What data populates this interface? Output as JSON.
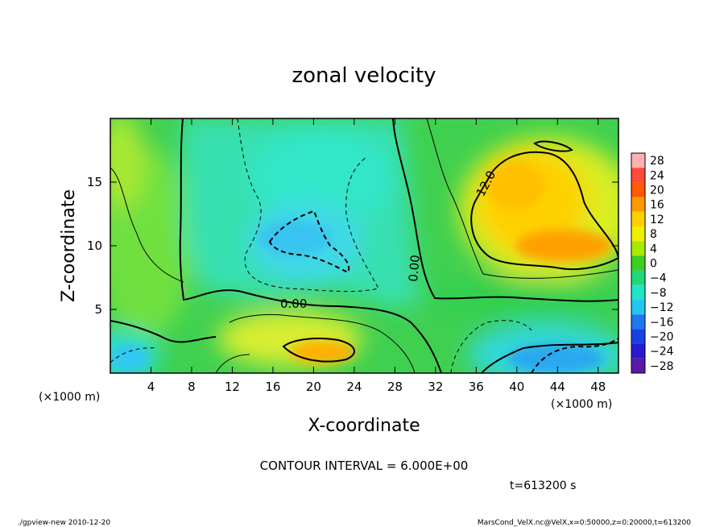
{
  "chart_data": {
    "type": "heatmap",
    "title": "zonal velocity",
    "xlabel": "X-coordinate",
    "ylabel": "Z-coordinate",
    "x_unit": "(×1000 m)",
    "x_ticks": [
      4,
      8,
      12,
      16,
      20,
      24,
      28,
      32,
      36,
      40,
      44,
      48
    ],
    "xlim": [
      0,
      50
    ],
    "y_ticks": [
      5,
      10,
      15
    ],
    "ylim": [
      0,
      20
    ],
    "colorbar": {
      "labels": [
        "28",
        "24",
        "20",
        "16",
        "12",
        "8",
        "4",
        "0",
        "−4",
        "−8",
        "−12",
        "−16",
        "−20",
        "−24",
        "−28"
      ],
      "values": [
        28,
        24,
        20,
        16,
        12,
        8,
        4,
        0,
        -4,
        -8,
        -12,
        -16,
        -20,
        -24,
        -28
      ],
      "colors": [
        "#ff7a7a",
        "#ff4a3a",
        "#ff5a00",
        "#ff9a00",
        "#ffd000",
        "#eef000",
        "#a8ea00",
        "#3ccf20",
        "#20d878",
        "#20e6c8",
        "#20c8f0",
        "#1e78f0",
        "#1840e8",
        "#2a1ad0",
        "#5a1aa8"
      ],
      "range": [
        -30,
        30
      ]
    },
    "contour_labels": [
      "12.0",
      "0.00",
      "0.00"
    ],
    "contour_interval": "CONTOUR INTERVAL = 6.000E+00",
    "time_label": "t=613200 s",
    "footer_left": "./gpview-new 2010-12-20",
    "footer_right": "MarsCond_VelX.nc@VelX,x=0:50000,z=0:20000,t=613200"
  }
}
